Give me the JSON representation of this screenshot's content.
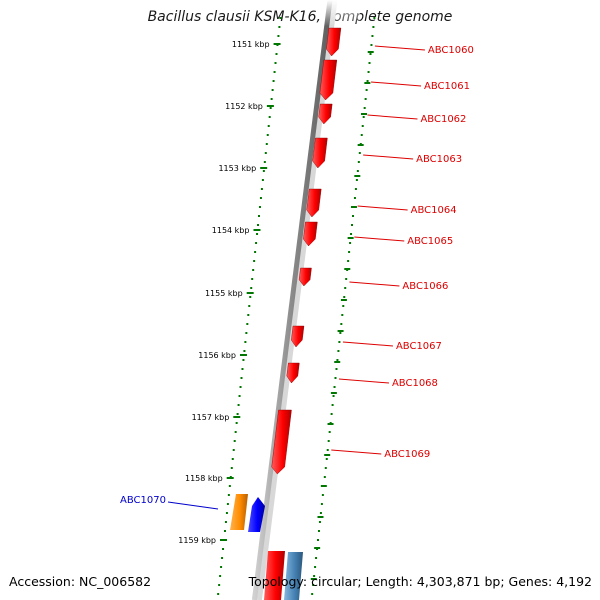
{
  "title": "Bacillus clausii KSM-K16, complete genome",
  "footer": {
    "accession": "Accession: NC_006582",
    "summary": "Topology: circular; Length: 4,303,871 bp; Genes: 4,192"
  },
  "ruler": {
    "ticks": [
      {
        "label": "1151 kbp"
      },
      {
        "label": "1152 kbp"
      },
      {
        "label": "1153 kbp"
      },
      {
        "label": "1154 kbp"
      },
      {
        "label": "1155 kbp"
      },
      {
        "label": "1156 kbp"
      },
      {
        "label": "1157 kbp"
      },
      {
        "label": "1158 kbp"
      },
      {
        "label": "1159 kbp"
      }
    ]
  },
  "genes": [
    {
      "name": "ABC1060",
      "strand": "forward",
      "color": "#dd0000"
    },
    {
      "name": "ABC1061",
      "strand": "forward",
      "color": "#dd0000"
    },
    {
      "name": "ABC1062",
      "strand": "forward",
      "color": "#dd0000"
    },
    {
      "name": "ABC1063",
      "strand": "forward",
      "color": "#dd0000"
    },
    {
      "name": "ABC1064",
      "strand": "forward",
      "color": "#dd0000"
    },
    {
      "name": "ABC1065",
      "strand": "forward",
      "color": "#dd0000"
    },
    {
      "name": "ABC1066",
      "strand": "forward",
      "color": "#dd0000"
    },
    {
      "name": "ABC1067",
      "strand": "forward",
      "color": "#dd0000"
    },
    {
      "name": "ABC1068",
      "strand": "forward",
      "color": "#dd0000"
    },
    {
      "name": "ABC1069",
      "strand": "forward",
      "color": "#dd0000"
    },
    {
      "name": "ABC1070",
      "strand": "reverse",
      "color": "#0000cc"
    }
  ],
  "colors": {
    "forward": "#ff0000",
    "reverse": "#0000ff",
    "orange": "#ff8c00",
    "steelblue": "#4682b4",
    "tick_green": "#007700",
    "backbone": "#888888"
  }
}
